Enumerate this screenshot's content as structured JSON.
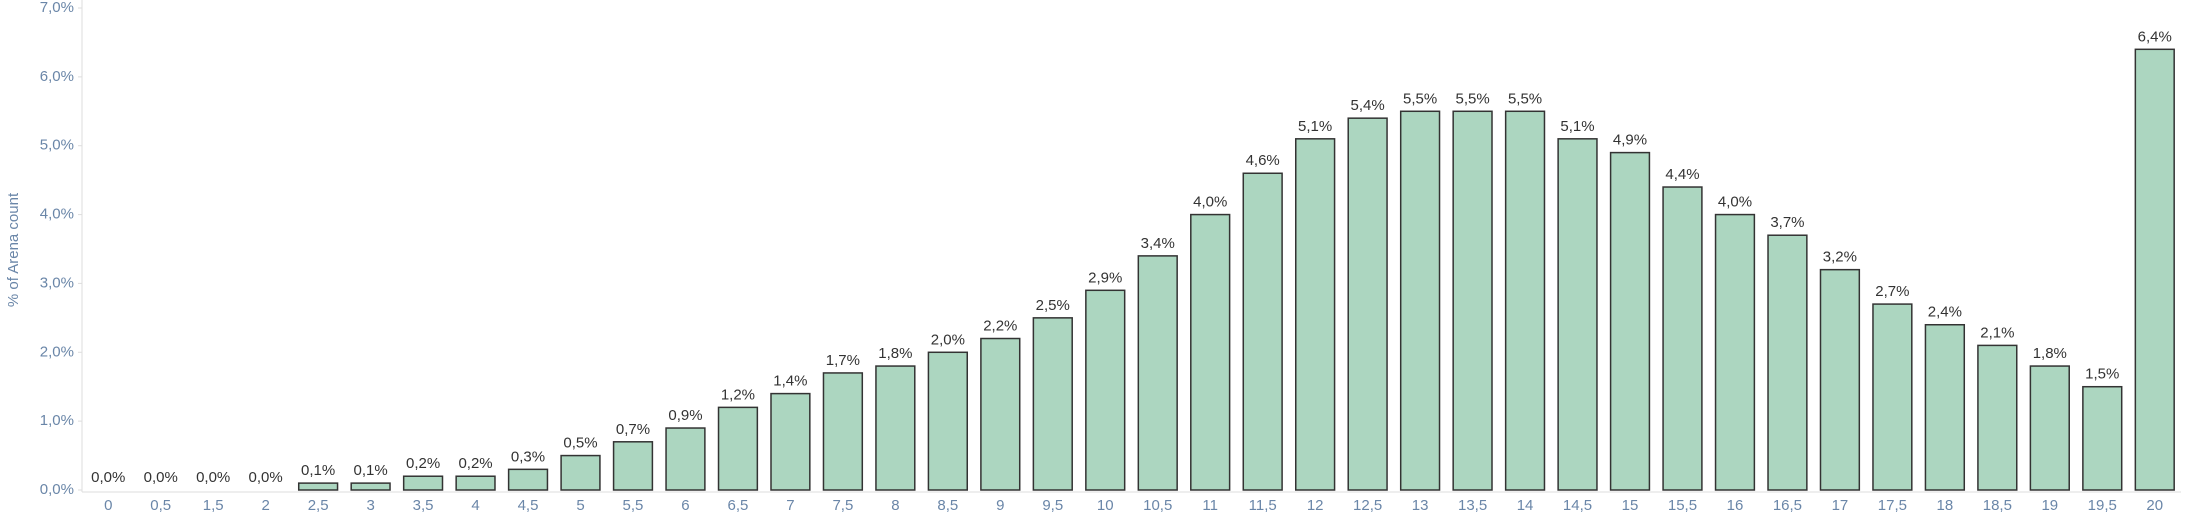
{
  "chart_data": {
    "type": "bar",
    "y_axis_label": "% of Arena count",
    "categories": [
      "0",
      "0,5",
      "1,5",
      "2",
      "2,5",
      "3",
      "3,5",
      "4",
      "4,5",
      "5",
      "5,5",
      "6",
      "6,5",
      "7",
      "7,5",
      "8",
      "8,5",
      "9",
      "9,5",
      "10",
      "10,5",
      "11",
      "11,5",
      "12",
      "12,5",
      "13",
      "13,5",
      "14",
      "14,5",
      "15",
      "15,5",
      "16",
      "16,5",
      "17",
      "17,5",
      "18",
      "18,5",
      "19",
      "19,5",
      "20"
    ],
    "values": [
      0.0,
      0.0,
      0.0,
      0.0,
      0.1,
      0.1,
      0.2,
      0.2,
      0.3,
      0.5,
      0.7,
      0.9,
      1.2,
      1.4,
      1.7,
      1.8,
      2.0,
      2.2,
      2.5,
      2.9,
      3.4,
      4.0,
      4.6,
      5.1,
      5.4,
      5.5,
      5.5,
      5.5,
      5.1,
      4.9,
      4.4,
      4.0,
      3.7,
      3.2,
      2.7,
      2.4,
      2.1,
      1.8,
      1.5,
      6.4
    ],
    "value_labels": [
      "0,0%",
      "0,0%",
      "0,0%",
      "0,0%",
      "0,1%",
      "0,1%",
      "0,2%",
      "0,2%",
      "0,3%",
      "0,5%",
      "0,7%",
      "0,9%",
      "1,2%",
      "1,4%",
      "1,7%",
      "1,8%",
      "2,0%",
      "2,2%",
      "2,5%",
      "2,9%",
      "3,4%",
      "4,0%",
      "4,6%",
      "5,1%",
      "5,4%",
      "5,5%",
      "5,5%",
      "5,5%",
      "5,1%",
      "4,9%",
      "4,4%",
      "4,0%",
      "3,7%",
      "3,2%",
      "2,7%",
      "2,4%",
      "2,1%",
      "1,8%",
      "1,5%",
      "6,4%"
    ],
    "color": "#acd6c0",
    "ylim": [
      0,
      7
    ],
    "yticks": [
      {
        "value": 0,
        "label": "0,0%"
      },
      {
        "value": 1,
        "label": "1,0%"
      },
      {
        "value": 2,
        "label": "2,0%"
      },
      {
        "value": 3,
        "label": "3,0%"
      },
      {
        "value": 4,
        "label": "4,0%"
      },
      {
        "value": 5,
        "label": "5,0%"
      },
      {
        "value": 6,
        "label": "6,0%"
      },
      {
        "value": 7,
        "label": "7,0%"
      }
    ],
    "grid": false
  }
}
